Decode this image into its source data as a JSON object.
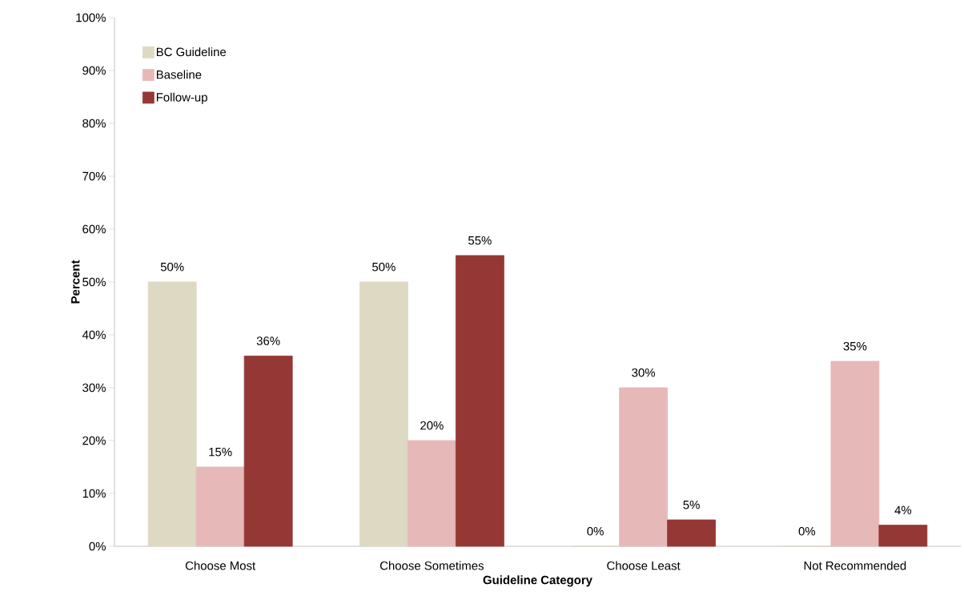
{
  "chart_data": {
    "type": "bar",
    "xlabel": "Guideline Category",
    "ylabel": "Percent",
    "categories": [
      "Choose Most",
      "Choose Sometimes",
      "Choose Least",
      "Not Recommended"
    ],
    "series": [
      {
        "name": "BC Guideline",
        "color": "#ddd9c3",
        "values": [
          50,
          50,
          0,
          0
        ],
        "value_labels": [
          "50%",
          "50%",
          "0%",
          "0%"
        ]
      },
      {
        "name": "Baseline",
        "color": "#e6b9b8",
        "values": [
          15,
          20,
          30,
          35
        ],
        "value_labels": [
          "15%",
          "20%",
          "30%",
          "35%"
        ]
      },
      {
        "name": "Follow-up",
        "color": "#953735",
        "values": [
          36,
          55,
          5,
          4
        ],
        "value_labels": [
          "36%",
          "55%",
          "5%",
          "4%"
        ]
      }
    ],
    "ylim": [
      0,
      100
    ],
    "yticks": [
      {
        "value": 0,
        "label": "0%"
      },
      {
        "value": 10,
        "label": "10%"
      },
      {
        "value": 20,
        "label": "20%"
      },
      {
        "value": 30,
        "label": "30%"
      },
      {
        "value": 40,
        "label": "40%"
      },
      {
        "value": 50,
        "label": "50%"
      },
      {
        "value": 60,
        "label": "60%"
      },
      {
        "value": 70,
        "label": "70%"
      },
      {
        "value": 80,
        "label": "80%"
      },
      {
        "value": 90,
        "label": "90%"
      },
      {
        "value": 100,
        "label": "100%"
      }
    ],
    "legend": "top left",
    "grid": false
  }
}
